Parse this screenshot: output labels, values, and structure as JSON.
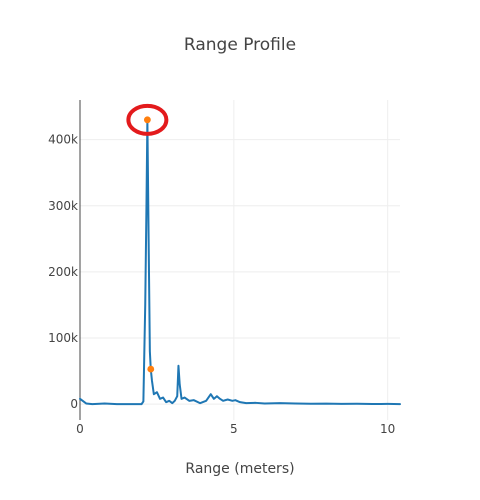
{
  "chart_data": {
    "type": "line",
    "title": "Range Profile",
    "xlabel": "Range (meters)",
    "ylabel": "",
    "xlim": [
      0,
      10.4
    ],
    "ylim": [
      -24000,
      460000
    ],
    "x_ticks": [
      0,
      5,
      10
    ],
    "x_tick_labels": [
      "0",
      "5",
      "10"
    ],
    "y_ticks": [
      0,
      100000,
      200000,
      300000,
      400000
    ],
    "y_tick_labels": [
      "0",
      "100k",
      "200k",
      "300k",
      "400k"
    ],
    "grid": true,
    "legend": "none",
    "series": [
      {
        "color": "#1f77b4",
        "x": [
          0,
          0.2,
          0.4,
          0.8,
          1.2,
          1.6,
          2.0,
          2.06,
          2.12,
          2.16,
          2.19,
          2.23,
          2.27,
          2.3,
          2.34,
          2.4,
          2.5,
          2.6,
          2.7,
          2.8,
          2.9,
          3.0,
          3.08,
          3.16,
          3.2,
          3.24,
          3.3,
          3.4,
          3.55,
          3.7,
          3.9,
          4.1,
          4.25,
          4.35,
          4.45,
          4.55,
          4.65,
          4.8,
          4.95,
          5.05,
          5.2,
          5.4,
          5.7,
          6.0,
          6.5,
          7.0,
          7.5,
          8.0,
          8.5,
          9.0,
          9.5,
          10.0,
          10.4
        ],
        "y": [
          8000,
          1000,
          0,
          1000,
          0,
          0,
          0,
          4000,
          150000,
          300000,
          430000,
          250000,
          80000,
          53000,
          35000,
          15000,
          18000,
          8000,
          10000,
          3000,
          5000,
          1500,
          5000,
          12000,
          58000,
          30000,
          8000,
          10000,
          5000,
          6000,
          1500,
          5000,
          15000,
          8000,
          12000,
          8000,
          5000,
          7000,
          5000,
          6000,
          3000,
          1500,
          2000,
          1000,
          1500,
          1000,
          500,
          800,
          300,
          500,
          200,
          300,
          100
        ]
      }
    ],
    "highlight_points": [
      {
        "x": 2.19,
        "y": 430000,
        "color": "#ff7f0e"
      },
      {
        "x": 2.3,
        "y": 53000,
        "color": "#ff7f0e"
      }
    ],
    "annotation": {
      "shape": "ellipse",
      "target_x": 2.19,
      "target_y": 430000,
      "color": "#e31a1c"
    }
  }
}
